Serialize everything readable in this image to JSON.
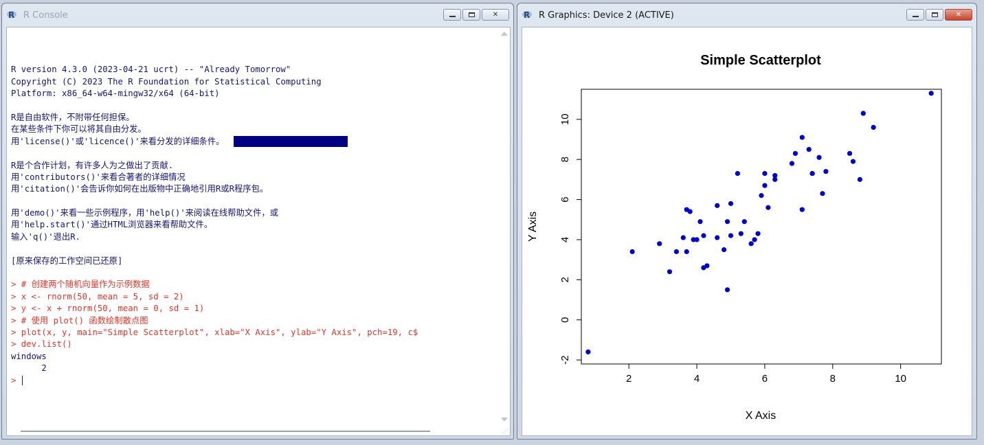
{
  "console": {
    "title": "R Console",
    "lines": [
      "",
      "R version 4.3.0 (2023-04-21 ucrt) -- \"Already Tomorrow\"",
      "Copyright (C) 2023 The R Foundation for Statistical Computing",
      "Platform: x86_64-w64-mingw32/x64 (64-bit)",
      "",
      "R是自由软件，不附带任何担保。",
      "在某些条件下你可以将其自由分发。",
      "用'license()'或'licence()'来看分发的详细条件。",
      "",
      "R是个合作计划，有许多人为之做出了贡献.",
      "用'contributors()'来看合著者的详细情况",
      "用'citation()'会告诉你如何在出版物中正确地引用R或R程序包。",
      "",
      "用'demo()'来看一些示例程序，用'help()'来阅读在线帮助文件，或",
      "用'help.start()'通过HTML浏览器来看帮助文件。",
      "输入'q()'退出R.",
      "",
      "[原来保存的工作空间已还原]",
      "",
      "> # 创建两个随机向量作为示例数据",
      "> x <- rnorm(50, mean = 5, sd = 2)",
      "> y <- x + rnorm(50, mean = 0, sd = 1)",
      "> # 使用 plot() 函数绘制散点图",
      "> plot(x, y, main=\"Simple Scatterplot\", xlab=\"X Axis\", ylab=\"Y Axis\", pch=19, c$",
      "> dev.list()",
      "windows",
      "      2",
      "> "
    ],
    "command_line_indices": [
      19,
      20,
      21,
      22,
      23,
      24
    ]
  },
  "graphics": {
    "title": "R Graphics: Device 2 (ACTIVE)"
  },
  "colors": {
    "point": "#0000cd",
    "console_output": "#14147a",
    "console_command": "#e2352a",
    "highlight": "#000080"
  },
  "chart_data": {
    "type": "scatter",
    "title": "Simple Scatterplot",
    "xlabel": "X Axis",
    "ylabel": "Y Axis",
    "xlim": [
      0.6,
      11.2
    ],
    "ylim": [
      -2.2,
      11.5
    ],
    "xticks": [
      2,
      4,
      6,
      8,
      10
    ],
    "yticks": [
      -2,
      0,
      2,
      4,
      6,
      8,
      10
    ],
    "grid": false,
    "points": [
      [
        0.8,
        -1.6
      ],
      [
        2.1,
        3.4
      ],
      [
        2.9,
        3.8
      ],
      [
        3.2,
        2.4
      ],
      [
        3.4,
        3.4
      ],
      [
        3.6,
        4.1
      ],
      [
        3.7,
        3.4
      ],
      [
        3.7,
        5.5
      ],
      [
        3.8,
        5.4
      ],
      [
        3.9,
        4.0
      ],
      [
        4.0,
        4.0
      ],
      [
        4.1,
        4.9
      ],
      [
        4.2,
        2.6
      ],
      [
        4.2,
        4.2
      ],
      [
        4.3,
        2.7
      ],
      [
        4.6,
        4.1
      ],
      [
        4.6,
        5.7
      ],
      [
        4.8,
        3.5
      ],
      [
        4.9,
        4.9
      ],
      [
        4.9,
        1.5
      ],
      [
        5.0,
        4.2
      ],
      [
        5.0,
        5.8
      ],
      [
        5.2,
        7.3
      ],
      [
        5.3,
        4.3
      ],
      [
        5.4,
        4.9
      ],
      [
        5.6,
        3.8
      ],
      [
        5.7,
        4.0
      ],
      [
        5.8,
        4.3
      ],
      [
        5.9,
        6.2
      ],
      [
        6.0,
        7.3
      ],
      [
        6.0,
        6.7
      ],
      [
        6.1,
        5.6
      ],
      [
        6.3,
        7.2
      ],
      [
        6.3,
        7.0
      ],
      [
        6.8,
        7.8
      ],
      [
        6.9,
        8.3
      ],
      [
        7.1,
        9.1
      ],
      [
        7.1,
        5.5
      ],
      [
        7.3,
        8.5
      ],
      [
        7.4,
        7.3
      ],
      [
        7.4,
        7.3
      ],
      [
        7.6,
        8.1
      ],
      [
        7.7,
        6.3
      ],
      [
        7.8,
        7.4
      ],
      [
        8.5,
        8.3
      ],
      [
        8.6,
        7.9
      ],
      [
        8.8,
        7.0
      ],
      [
        8.9,
        10.3
      ],
      [
        9.2,
        9.6
      ],
      [
        10.9,
        11.3
      ]
    ]
  }
}
